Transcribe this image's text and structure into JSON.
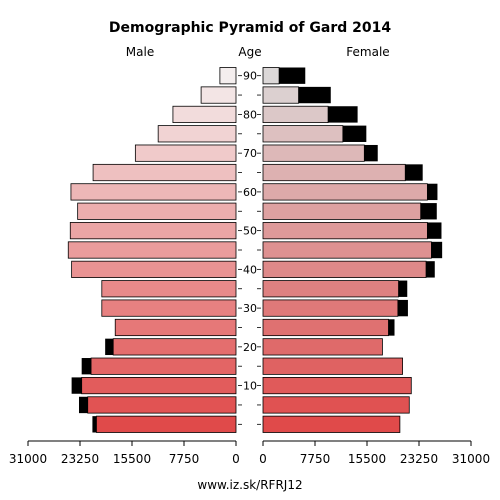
{
  "chart_data": {
    "type": "bar",
    "title": "Demographic Pyramid of Gard 2014",
    "male_label": "Male",
    "age_label": "Age",
    "female_label": "Female",
    "source": "www.iz.sk/RFRJ12",
    "axis_ticks_left": [
      "31000",
      "23250",
      "15500",
      "7750",
      "0"
    ],
    "axis_ticks_right": [
      "0",
      "7750",
      "15500",
      "23250",
      "31000"
    ],
    "xlim": [
      0,
      31000
    ],
    "age_tick_labels": [
      "10",
      "20",
      "30",
      "40",
      "50",
      "60",
      "70",
      "80",
      "90"
    ],
    "age_groups": [
      "0-4",
      "5-9",
      "10-14",
      "15-19",
      "20-24",
      "25-29",
      "30-34",
      "35-39",
      "40-44",
      "45-49",
      "50-54",
      "55-59",
      "60-64",
      "65-69",
      "70-74",
      "75-79",
      "80-84",
      "85-89",
      "90+"
    ],
    "male_values": [
      20800,
      22100,
      23000,
      21600,
      18300,
      18000,
      20000,
      20000,
      24500,
      25000,
      24700,
      23600,
      24600,
      21300,
      15000,
      11600,
      9400,
      5200,
      2400
    ],
    "female_values": [
      20400,
      21800,
      22100,
      20800,
      17800,
      18700,
      20100,
      20200,
      24300,
      25100,
      24500,
      23500,
      24500,
      21200,
      15100,
      11900,
      9700,
      5300,
      2400
    ],
    "male_excess": [
      600,
      1300,
      1500,
      1400,
      1200,
      0,
      0,
      0,
      0,
      0,
      0,
      0,
      0,
      0,
      0,
      0,
      0,
      0,
      0
    ],
    "female_excess": [
      0,
      0,
      0,
      0,
      0,
      900,
      1500,
      1300,
      1300,
      1600,
      2100,
      2400,
      1500,
      2600,
      2000,
      3500,
      4400,
      4800,
      3900
    ]
  }
}
